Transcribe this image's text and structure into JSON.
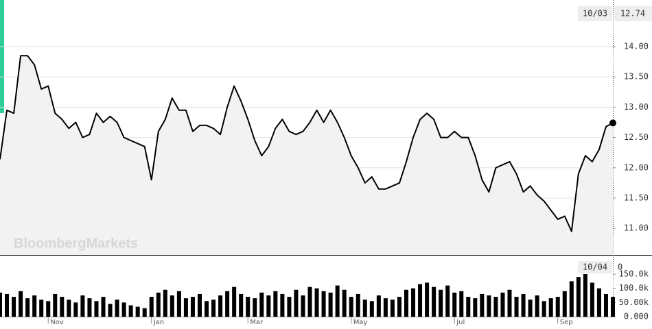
{
  "chart_data": [
    {
      "type": "line",
      "color": "#000000",
      "fill": "#f2f2f2",
      "watermark": "BloombergMarkets",
      "date_label": "10/03",
      "value_label": "12.74",
      "ylim": [
        10.56,
        14.77
      ],
      "yticks": [
        {
          "value": 11,
          "label": "11.00"
        },
        {
          "value": 11.5,
          "label": "11.50"
        },
        {
          "value": 12,
          "label": "12.00"
        },
        {
          "value": 12.5,
          "label": "12.50"
        },
        {
          "value": 13,
          "label": "13.00"
        },
        {
          "value": 13.5,
          "label": "13.50"
        },
        {
          "value": 14,
          "label": "14.00"
        }
      ],
      "grid": true,
      "values": [
        12.14,
        12.95,
        12.9,
        13.85,
        13.85,
        13.7,
        13.3,
        13.35,
        12.9,
        12.8,
        12.65,
        12.75,
        12.5,
        12.55,
        12.9,
        12.75,
        12.85,
        12.75,
        12.5,
        12.45,
        12.4,
        12.35,
        11.8,
        12.6,
        12.8,
        13.15,
        12.95,
        12.95,
        12.6,
        12.7,
        12.7,
        12.65,
        12.55,
        13.0,
        13.35,
        13.1,
        12.8,
        12.45,
        12.2,
        12.35,
        12.65,
        12.8,
        12.6,
        12.55,
        12.6,
        12.75,
        12.95,
        12.75,
        12.95,
        12.75,
        12.5,
        12.2,
        12.0,
        11.75,
        11.85,
        11.65,
        11.65,
        11.7,
        11.75,
        12.1,
        12.5,
        12.8,
        12.9,
        12.8,
        12.5,
        12.5,
        12.6,
        12.5,
        12.5,
        12.2,
        11.8,
        11.6,
        12.0,
        12.05,
        12.1,
        11.9,
        11.6,
        11.7,
        11.55,
        11.45,
        11.3,
        11.15,
        11.2,
        10.95,
        11.9,
        12.2,
        12.1,
        12.3,
        12.68,
        12.74
      ]
    },
    {
      "type": "bar",
      "color": "#000000",
      "date_label": "10/04",
      "value_label": "0",
      "ylim": [
        0,
        213000
      ],
      "yticks": [
        {
          "value": 0,
          "label": "0.000"
        },
        {
          "value": 50000,
          "label": "50.00k"
        },
        {
          "value": 100000,
          "label": "100.0k"
        },
        {
          "value": 150000,
          "label": "150.0k"
        }
      ],
      "categories": [
        null,
        null,
        null,
        null,
        null,
        null,
        null,
        "Nov",
        null,
        null,
        null,
        null,
        null,
        null,
        null,
        null,
        null,
        null,
        null,
        null,
        null,
        null,
        "Jan",
        null,
        null,
        null,
        null,
        null,
        null,
        null,
        null,
        null,
        null,
        null,
        null,
        null,
        "Mar",
        null,
        null,
        null,
        null,
        null,
        null,
        null,
        null,
        null,
        null,
        null,
        null,
        null,
        null,
        "May",
        null,
        null,
        null,
        null,
        null,
        null,
        null,
        null,
        null,
        null,
        null,
        null,
        null,
        null,
        "Jul",
        null,
        null,
        null,
        null,
        null,
        null,
        null,
        null,
        null,
        null,
        null,
        null,
        null,
        null,
        "Sep",
        null,
        null,
        null,
        null,
        null,
        null,
        null,
        null
      ],
      "values": [
        85000,
        80000,
        70000,
        90000,
        65000,
        75000,
        60000,
        55000,
        80000,
        70000,
        60000,
        50000,
        75000,
        65000,
        55000,
        70000,
        45000,
        60000,
        50000,
        40000,
        35000,
        30000,
        70000,
        85000,
        95000,
        75000,
        90000,
        65000,
        70000,
        80000,
        55000,
        60000,
        75000,
        90000,
        105000,
        80000,
        70000,
        65000,
        85000,
        75000,
        90000,
        80000,
        70000,
        95000,
        75000,
        105000,
        100000,
        90000,
        85000,
        110000,
        95000,
        70000,
        80000,
        60000,
        55000,
        75000,
        65000,
        60000,
        70000,
        95000,
        100000,
        115000,
        120000,
        105000,
        95000,
        110000,
        85000,
        90000,
        70000,
        65000,
        80000,
        75000,
        70000,
        85000,
        95000,
        70000,
        80000,
        60000,
        75000,
        55000,
        65000,
        70000,
        90000,
        125000,
        140000,
        150000,
        120000,
        100000,
        80000,
        70000
      ]
    }
  ]
}
